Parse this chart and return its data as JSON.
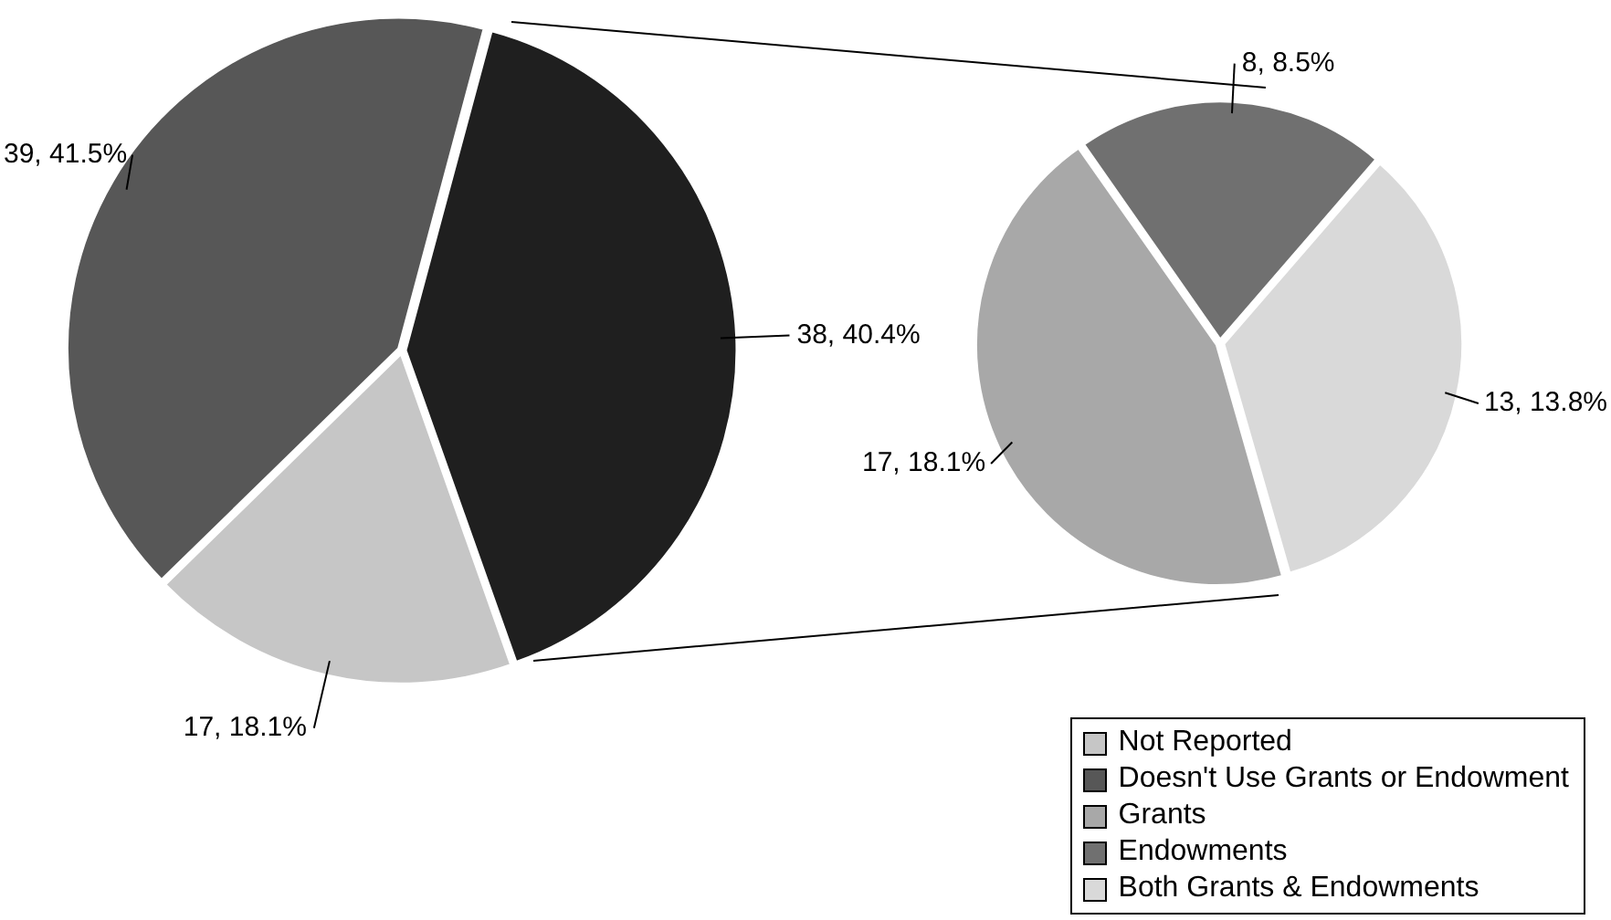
{
  "chart_data": [
    {
      "type": "pie",
      "categories": [
        null,
        "Not Reported",
        "Doesn't Use Grants or Endowment"
      ],
      "values": [
        38,
        17,
        39
      ],
      "colors": [
        "#1f1f1f",
        "#c6c6c6",
        "#575757"
      ],
      "value_labels": [
        "38, 40.4%",
        "17, 18.1%",
        "39, 41.5%"
      ],
      "legend": "bottom right"
    },
    {
      "type": "pie",
      "categories": [
        "Grants",
        "Endowments",
        "Both Grants & Endowments"
      ],
      "values": [
        17,
        8,
        13
      ],
      "colors": [
        "#a8a8a8",
        "#707070",
        "#d9d9d9"
      ],
      "value_labels": [
        "17, 18.1%",
        "8, 8.5%",
        "13, 13.8%"
      ],
      "legend": "bottom right"
    }
  ]
}
